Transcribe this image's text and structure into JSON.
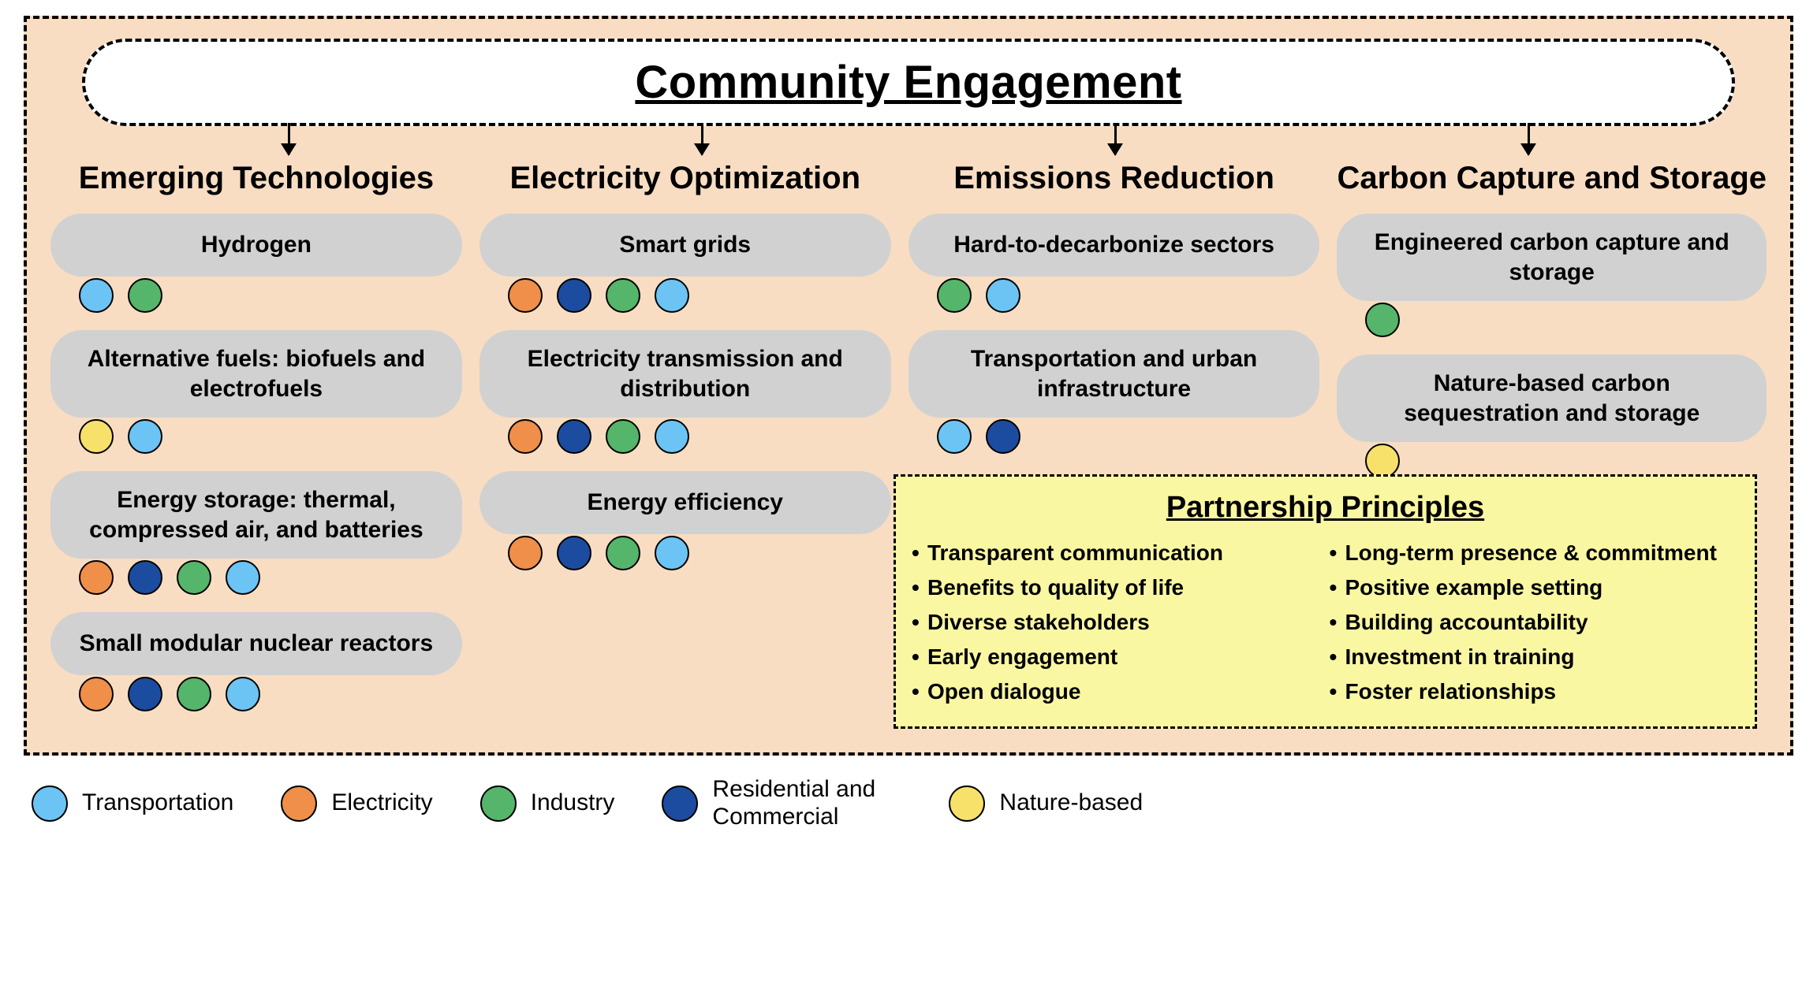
{
  "title": "Community Engagement",
  "colors": {
    "background_main": "#f8ddc3",
    "card_bg": "#d1d1d1",
    "principles_bg": "#faf7a3",
    "border": "#000000",
    "transportation": "#6cc4f5",
    "electricity": "#ef8f4a",
    "industry": "#55b56a",
    "residential": "#1c4ca0",
    "nature": "#f7e16b"
  },
  "legend": [
    {
      "key": "transportation",
      "label": "Transportation"
    },
    {
      "key": "electricity",
      "label": "Electricity"
    },
    {
      "key": "industry",
      "label": "Industry"
    },
    {
      "key": "residential",
      "label": "Residential and Commercial"
    },
    {
      "key": "nature",
      "label": "Nature-based"
    }
  ],
  "columns": [
    {
      "heading": "Emerging Technologies",
      "cards": [
        {
          "label": "Hydrogen",
          "dots": [
            "transportation",
            "industry"
          ]
        },
        {
          "label": "Alternative fuels: biofuels and electrofuels",
          "dots": [
            "nature",
            "transportation"
          ]
        },
        {
          "label": "Energy storage: thermal, compressed air, and batteries",
          "dots": [
            "electricity",
            "residential",
            "industry",
            "transportation"
          ]
        },
        {
          "label": "Small modular nuclear reactors",
          "dots": [
            "electricity",
            "residential",
            "industry",
            "transportation"
          ]
        }
      ]
    },
    {
      "heading": "Electricity Optimization",
      "cards": [
        {
          "label": "Smart grids",
          "dots": [
            "electricity",
            "residential",
            "industry",
            "transportation"
          ]
        },
        {
          "label": "Electricity transmission and distribution",
          "dots": [
            "electricity",
            "residential",
            "industry",
            "transportation"
          ]
        },
        {
          "label": "Energy efficiency",
          "dots": [
            "electricity",
            "residential",
            "industry",
            "transportation"
          ]
        }
      ]
    },
    {
      "heading": "Emissions Reduction",
      "cards": [
        {
          "label": "Hard-to-decarbonize sectors",
          "dots": [
            "industry",
            "transportation"
          ]
        },
        {
          "label": "Transportation and urban infrastructure",
          "dots": [
            "transportation",
            "residential"
          ]
        }
      ]
    },
    {
      "heading": "Carbon Capture and Storage",
      "cards": [
        {
          "label": "Engineered carbon capture and storage",
          "dots": [
            "industry"
          ]
        },
        {
          "label": "Nature-based carbon sequestration and storage",
          "dots": [
            "nature"
          ]
        }
      ]
    }
  ],
  "principles": {
    "title": "Partnership Principles",
    "left": [
      "Transparent communication",
      "Benefits to quality of life",
      "Diverse stakeholders",
      "Early engagement",
      "Open dialogue"
    ],
    "right": [
      "Long-term presence & commitment",
      "Positive example setting",
      "Building accountability",
      "Investment in training",
      "Foster relationships"
    ]
  },
  "typography": {
    "title_fontsize": 58,
    "heading_fontsize": 40,
    "card_fontsize": 30,
    "principle_title_fontsize": 38,
    "principle_item_fontsize": 28,
    "legend_fontsize": 30
  },
  "layout": {
    "dot_diameter": 44,
    "card_radius": 40
  }
}
